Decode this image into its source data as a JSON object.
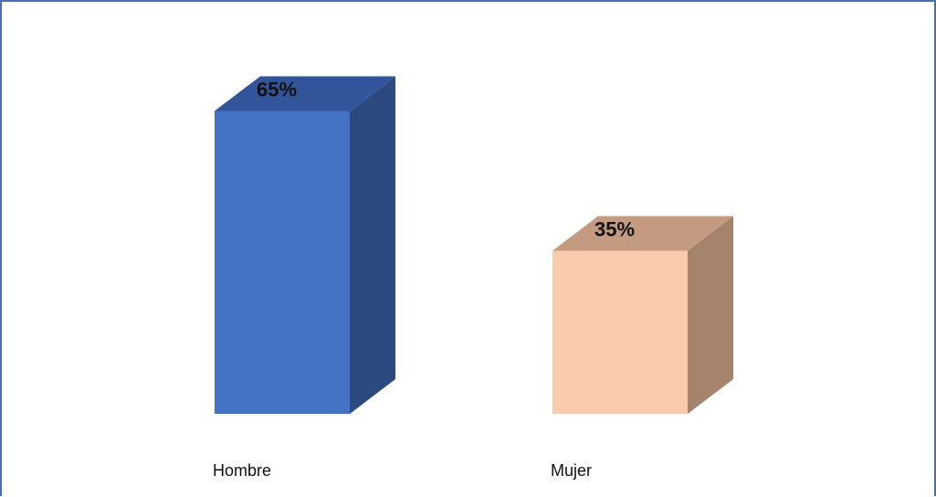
{
  "chart_data": {
    "type": "bar",
    "categories": [
      "Hombre",
      "Mujer"
    ],
    "values": [
      65,
      35
    ],
    "data_labels": [
      "65%",
      "35%"
    ],
    "ylim": [
      0,
      70
    ],
    "grid": false,
    "legend": "none",
    "style": "3d-column",
    "colors": {
      "bars": [
        "#4472c4",
        "#f8cbad"
      ],
      "bar_sides": [
        "#2c4a80",
        "#a5836c"
      ],
      "bar_tops": [
        "#32549a",
        "#c49a80"
      ],
      "frame": "#4a6ea8"
    }
  }
}
